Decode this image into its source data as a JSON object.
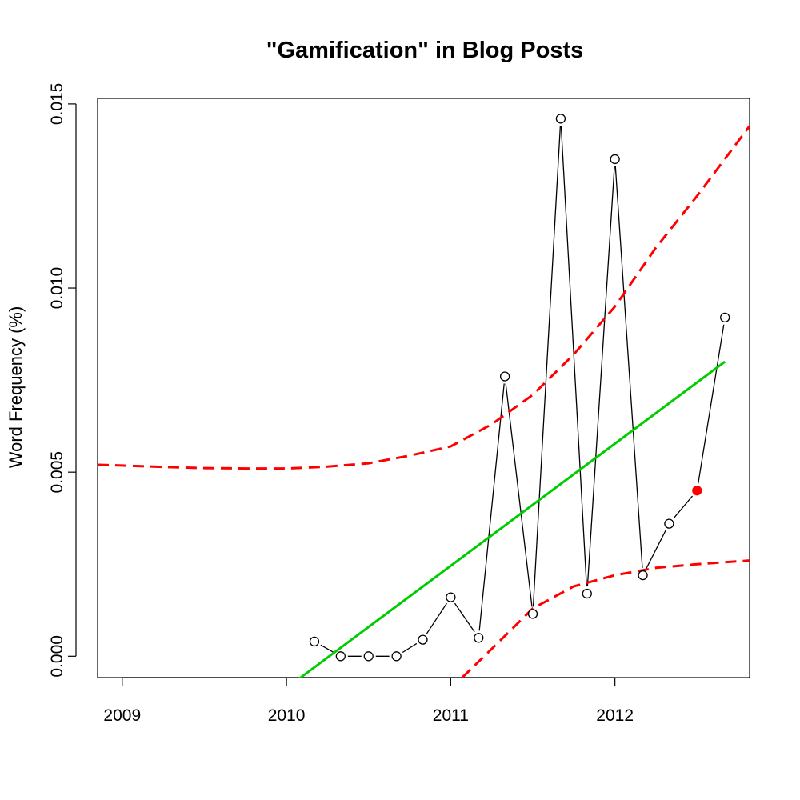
{
  "chart_data": {
    "type": "line",
    "title": "\"Gamification\" in Blog Posts",
    "xlabel": "",
    "ylabel": "Word Frequency (%)",
    "xlim": [
      2008.85,
      2012.82
    ],
    "ylim": [
      -0.00058,
      0.01515
    ],
    "x_ticks": [
      "2009",
      "2010",
      "2011",
      "2012"
    ],
    "y_ticks": [
      "0.000",
      "0.005",
      "0.010",
      "0.015"
    ],
    "grid": false,
    "series": [
      {
        "style": "observed",
        "color": "#000000",
        "x": [
          2010.17,
          2010.33,
          2010.5,
          2010.67,
          2010.83,
          2011.0,
          2011.17,
          2011.33,
          2011.5,
          2011.67,
          2011.83,
          2012.0,
          2012.17,
          2012.33,
          2012.5,
          2012.67
        ],
        "y": [
          0.0004,
          0.0,
          0.0,
          0.0,
          0.00045,
          0.0016,
          0.0005,
          0.0076,
          0.00115,
          0.0146,
          0.0017,
          0.0135,
          0.0022,
          0.0036,
          0.0045,
          0.0092
        ],
        "highlight_index": 14,
        "highlight_color": "#ff0000"
      },
      {
        "style": "trend",
        "color": "#00cc00",
        "x": [
          2010.08,
          2012.67
        ],
        "y": [
          -0.0006,
          0.008
        ]
      },
      {
        "style": "upper_band",
        "color": "#ff0000",
        "x": [
          2008.85,
          2009.0,
          2009.25,
          2009.5,
          2009.75,
          2010.0,
          2010.25,
          2010.5,
          2010.75,
          2011.0,
          2011.25,
          2011.5,
          2011.75,
          2012.0,
          2012.25,
          2012.5,
          2012.82
        ],
        "y": [
          0.0052,
          0.00518,
          0.00514,
          0.00511,
          0.0051,
          0.0051,
          0.00515,
          0.00524,
          0.00545,
          0.0057,
          0.0063,
          0.0071,
          0.0082,
          0.0095,
          0.0111,
          0.0125,
          0.0144
        ]
      },
      {
        "style": "lower_band",
        "color": "#ff0000",
        "x": [
          2011.07,
          2011.25,
          2011.5,
          2011.75,
          2012.0,
          2012.25,
          2012.5,
          2012.82
        ],
        "y": [
          -0.00058,
          0.0002,
          0.0013,
          0.0019,
          0.0022,
          0.0024,
          0.0025,
          0.0026
        ]
      }
    ]
  }
}
